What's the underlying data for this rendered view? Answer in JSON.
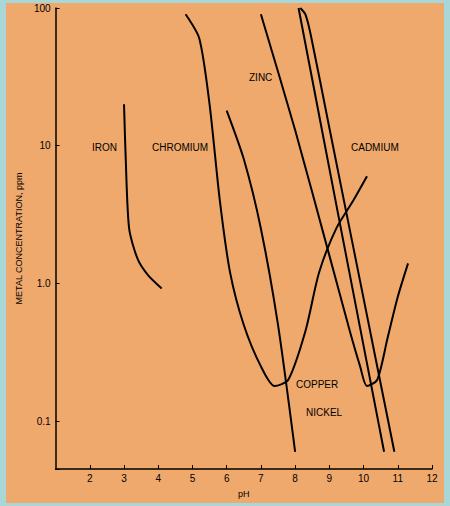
{
  "chart_data": {
    "type": "line",
    "xlabel": "pH",
    "ylabel": "METAL CONCENTRATION, ppm",
    "log": "y",
    "grid": false,
    "xlim": [
      1,
      12
    ],
    "xticks": [
      2,
      3,
      4,
      5,
      6,
      7,
      8,
      9,
      10,
      11,
      12
    ],
    "ylim": [
      0.045,
      100
    ],
    "yticks": [
      0.1,
      {
        "value": 1,
        "label": "1.0"
      },
      10,
      100
    ],
    "series": [
      {
        "name": "IRON",
        "color": "#000000",
        "x": [
          3.0,
          3.05,
          3.15,
          3.4,
          3.7,
          4.1
        ],
        "values": [
          20,
          8,
          2.5,
          1.5,
          1.15,
          0.92
        ]
      },
      {
        "name": "CHROMIUM",
        "color": "#000000",
        "x": [
          4.8,
          5.2,
          5.5,
          5.8,
          6.1,
          6.5,
          7.0,
          7.4,
          7.8,
          8.3,
          8.7,
          9.2,
          9.7,
          10.1
        ],
        "values": [
          90,
          60,
          20,
          4,
          1.2,
          0.5,
          0.25,
          0.18,
          0.2,
          0.45,
          1.2,
          2.5,
          4,
          6
        ]
      },
      {
        "name": "ZINC",
        "color": "#000000",
        "x": [
          7.0,
          8.0,
          9.0,
          9.6,
          9.9,
          10.1,
          10.4,
          10.7,
          11.0,
          11.3
        ],
        "values": [
          90,
          13,
          1.6,
          0.45,
          0.25,
          0.18,
          0.2,
          0.4,
          0.8,
          1.4
        ]
      },
      {
        "name": "CADMIUM",
        "color": "#000000",
        "x": [
          8.15,
          8.3,
          8.45,
          9.0,
          10.0,
          10.9
        ],
        "values": [
          100,
          90,
          65,
          13.5,
          0.78,
          0.06
        ]
      },
      {
        "name": "COPPER",
        "color": "#000000",
        "x": [
          6.0,
          6.5,
          7.0,
          7.5,
          8.0
        ],
        "values": [
          18,
          8,
          2.5,
          0.5,
          0.06
        ]
      },
      {
        "name": "NICKEL",
        "color": "#000000",
        "x": [
          8.1,
          9.3,
          10.6
        ],
        "values": [
          100,
          2.8,
          0.06
        ]
      }
    ]
  }
}
